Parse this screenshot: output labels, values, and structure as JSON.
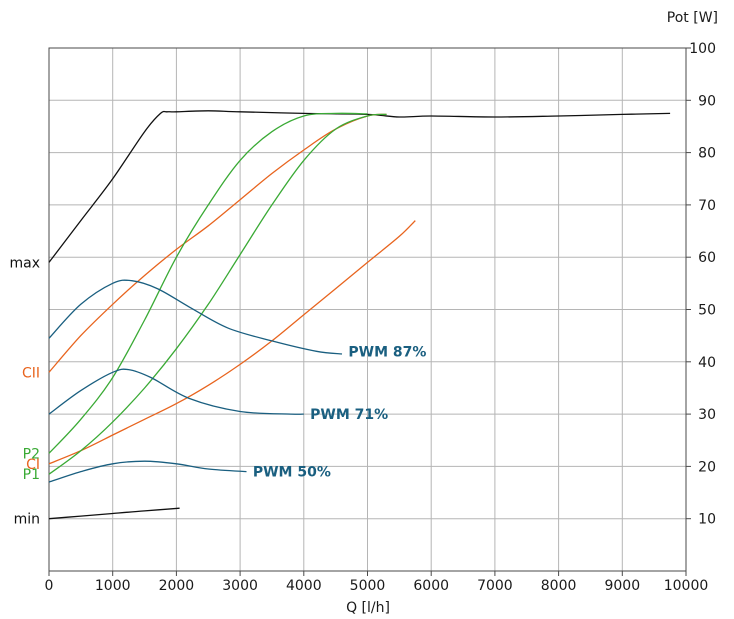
{
  "chart_data": {
    "type": "line",
    "xlabel": "Q [l/h]",
    "ylabel": "Pot [W]",
    "xlim": [
      0,
      10000
    ],
    "ylim": [
      0,
      100
    ],
    "x_ticks": [
      "0",
      "1000",
      "2000",
      "3000",
      "4000",
      "5000",
      "6000",
      "7000",
      "8000",
      "9000",
      "10000"
    ],
    "y_ticks": [
      "10",
      "20",
      "30",
      "40",
      "50",
      "60",
      "70",
      "80",
      "90",
      "100"
    ],
    "grid": true,
    "y_axis_position": "right",
    "colors": {
      "black": "#111111",
      "orange": "#e8641e",
      "green": "#3aaa35",
      "blue": "#1a5f80"
    },
    "side_labels": [
      {
        "text": "max",
        "y": 59,
        "color": "black"
      },
      {
        "text": "CII",
        "y": 38,
        "color": "orange"
      },
      {
        "text": "P2",
        "y": 22.5,
        "color": "green"
      },
      {
        "text": "CI",
        "y": 20.5,
        "color": "orange"
      },
      {
        "text": "P1",
        "y": 18.5,
        "color": "green"
      },
      {
        "text": "min",
        "y": 10,
        "color": "black"
      }
    ],
    "series": [
      {
        "name": "max",
        "color": "black",
        "x": [
          0,
          500,
          1000,
          1500,
          1750,
          1850,
          2000,
          2500,
          3000,
          4000,
          5000,
          5500,
          6000,
          7000,
          8000,
          9000,
          9750
        ],
        "y": [
          59,
          67,
          75,
          84,
          87.5,
          87.8,
          87.8,
          88,
          87.8,
          87.5,
          87.3,
          86.8,
          87,
          86.8,
          87,
          87.3,
          87.5
        ]
      },
      {
        "name": "min",
        "color": "black",
        "x": [
          0,
          500,
          1000,
          1500,
          2050
        ],
        "y": [
          10,
          10.5,
          11,
          11.5,
          12
        ]
      },
      {
        "name": "CII",
        "color": "orange",
        "x": [
          0,
          500,
          1000,
          1500,
          2000,
          2500,
          3000,
          3500,
          4000,
          4500,
          5000,
          5300
        ],
        "y": [
          38,
          45,
          51,
          56.5,
          61.5,
          66,
          71,
          76,
          80.5,
          84.5,
          87,
          87.3
        ]
      },
      {
        "name": "CI",
        "color": "orange",
        "x": [
          0,
          500,
          1000,
          1500,
          2000,
          2500,
          3000,
          3500,
          4000,
          4500,
          5000,
          5500,
          5750
        ],
        "y": [
          20.5,
          23,
          26,
          29,
          32,
          35.5,
          39.5,
          44,
          49,
          54,
          59,
          64,
          67
        ]
      },
      {
        "name": "P2",
        "color": "green",
        "x": [
          0,
          500,
          1000,
          1500,
          2000,
          2500,
          3000,
          3500,
          4000,
          4500,
          5000
        ],
        "y": [
          22.5,
          29,
          37,
          48,
          60,
          70,
          78.5,
          84,
          87,
          87.5,
          87.4
        ]
      },
      {
        "name": "P1",
        "color": "green",
        "x": [
          0,
          500,
          1000,
          1500,
          2000,
          2500,
          3000,
          3500,
          4000,
          4500,
          5000,
          5300
        ],
        "y": [
          18.5,
          23,
          28.5,
          35,
          42.5,
          51,
          60.5,
          70,
          78.5,
          84.5,
          87,
          87.3
        ]
      },
      {
        "name": "PWM 87%",
        "color": "blue",
        "x": [
          0,
          500,
          1000,
          1300,
          1700,
          2200,
          2800,
          3500,
          4200,
          4600
        ],
        "y": [
          44.5,
          51,
          55,
          55.5,
          54,
          50.5,
          46.5,
          44,
          42,
          41.5
        ]
      },
      {
        "name": "PWM 71%",
        "color": "blue",
        "x": [
          0,
          500,
          1000,
          1250,
          1600,
          2200,
          3000,
          3800,
          4000
        ],
        "y": [
          30,
          34.5,
          38,
          38.5,
          37,
          33,
          30.5,
          30,
          30
        ]
      },
      {
        "name": "PWM 50%",
        "color": "blue",
        "x": [
          0,
          500,
          1000,
          1500,
          2000,
          2500,
          3100
        ],
        "y": [
          17,
          19,
          20.5,
          21,
          20.5,
          19.5,
          19
        ]
      }
    ],
    "curve_labels": [
      {
        "text": "PWM 87%",
        "x": 4700,
        "y": 42
      },
      {
        "text": "PWM 71%",
        "x": 4100,
        "y": 30
      },
      {
        "text": "PWM 50%",
        "x": 3200,
        "y": 19
      }
    ]
  }
}
